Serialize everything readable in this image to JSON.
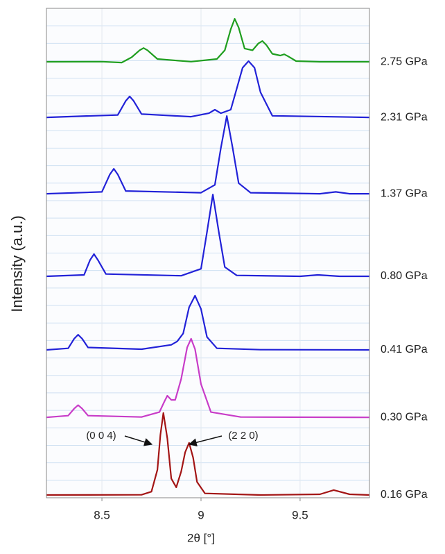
{
  "chart_data": {
    "type": "line",
    "x_label": "2θ [°]",
    "y_label": "Intensity (a.u.)",
    "xlim": [
      8.22,
      9.85
    ],
    "xticks": [
      8.5,
      9,
      9.5
    ],
    "ylim": [
      0,
      28
    ],
    "yticks": [
      0,
      1,
      2,
      3,
      4,
      5,
      6,
      7,
      8,
      9,
      10,
      11,
      12,
      13,
      14,
      15,
      16,
      17,
      18,
      19,
      20,
      21,
      22,
      23,
      24,
      25,
      26,
      27,
      28
    ],
    "ytick_labels": false,
    "grid": true,
    "annotations": [
      "(0 0 4)",
      "(2 2 0)"
    ],
    "series": [
      {
        "name": "0.16 GPa",
        "color": "#a31515",
        "x": [
          8.22,
          8.7,
          8.75,
          8.78,
          8.795,
          8.81,
          8.83,
          8.85,
          8.875,
          8.9,
          8.92,
          8.94,
          8.96,
          8.98,
          9.02,
          9.3,
          9.6,
          9.67,
          9.75,
          9.85
        ],
        "values": [
          0.16,
          0.17,
          0.35,
          1.6,
          3.6,
          4.85,
          3.4,
          1.1,
          0.6,
          1.5,
          2.6,
          3.14,
          2.3,
          0.9,
          0.25,
          0.16,
          0.2,
          0.44,
          0.2,
          0.16
        ]
      },
      {
        "name": "0.30 GPa",
        "color": "#c83cc8",
        "x": [
          8.22,
          8.33,
          8.36,
          8.38,
          8.4,
          8.43,
          8.7,
          8.79,
          8.815,
          8.83,
          8.85,
          8.87,
          8.9,
          8.93,
          8.95,
          8.97,
          9.0,
          9.05,
          9.2,
          9.85
        ],
        "values": [
          4.6,
          4.7,
          5.1,
          5.3,
          5.1,
          4.7,
          4.62,
          4.9,
          5.5,
          5.84,
          5.6,
          5.6,
          6.8,
          8.6,
          9.1,
          8.5,
          6.5,
          4.9,
          4.62,
          4.6
        ]
      },
      {
        "name": "0.41 GPa",
        "color": "#2222d8",
        "x": [
          8.22,
          8.33,
          8.36,
          8.38,
          8.4,
          8.43,
          8.7,
          8.85,
          8.88,
          8.91,
          8.94,
          8.97,
          9.0,
          9.03,
          9.08,
          9.3,
          9.85
        ],
        "values": [
          8.46,
          8.55,
          9.1,
          9.33,
          9.1,
          8.6,
          8.5,
          8.75,
          8.95,
          9.4,
          10.9,
          11.56,
          10.8,
          9.2,
          8.55,
          8.47,
          8.46
        ]
      },
      {
        "name": "0.80 GPa",
        "color": "#2222d8",
        "x": [
          8.22,
          8.41,
          8.44,
          8.46,
          8.48,
          8.52,
          8.9,
          9.0,
          9.03,
          9.06,
          9.09,
          9.12,
          9.18,
          9.5,
          9.59,
          9.7,
          9.85
        ],
        "values": [
          12.67,
          12.75,
          13.6,
          13.94,
          13.6,
          12.8,
          12.7,
          13.1,
          15.2,
          17.35,
          15.2,
          13.2,
          12.72,
          12.67,
          12.75,
          12.67,
          12.67
        ]
      },
      {
        "name": "1.37 GPa",
        "color": "#2222d8",
        "x": [
          8.22,
          8.5,
          8.54,
          8.56,
          8.58,
          8.62,
          9.0,
          9.07,
          9.1,
          9.13,
          9.16,
          9.19,
          9.25,
          9.6,
          9.68,
          9.75,
          9.85
        ],
        "values": [
          17.39,
          17.5,
          18.5,
          18.82,
          18.5,
          17.55,
          17.45,
          17.9,
          20.0,
          21.84,
          20.0,
          18.0,
          17.45,
          17.39,
          17.5,
          17.39,
          17.39
        ]
      },
      {
        "name": "2.31 GPa",
        "color": "#2222d8",
        "x": [
          8.22,
          8.58,
          8.62,
          8.64,
          8.66,
          8.7,
          8.95,
          9.04,
          9.07,
          9.1,
          9.15,
          9.18,
          9.21,
          9.24,
          9.27,
          9.3,
          9.36,
          9.85
        ],
        "values": [
          21.76,
          21.9,
          22.7,
          22.96,
          22.7,
          21.95,
          21.8,
          22.0,
          22.2,
          22.0,
          22.2,
          23.4,
          24.6,
          24.98,
          24.6,
          23.2,
          21.85,
          21.76
        ]
      },
      {
        "name": "2.75 GPa",
        "color": "#1f9e1f",
        "x": [
          8.22,
          8.5,
          8.6,
          8.65,
          8.69,
          8.71,
          8.73,
          8.78,
          8.95,
          9.08,
          9.12,
          9.15,
          9.17,
          9.19,
          9.22,
          9.26,
          9.29,
          9.31,
          9.33,
          9.36,
          9.4,
          9.42,
          9.44,
          9.48,
          9.6,
          9.85
        ],
        "values": [
          24.94,
          24.95,
          24.9,
          25.2,
          25.6,
          25.73,
          25.6,
          25.1,
          24.95,
          25.1,
          25.6,
          26.8,
          27.4,
          26.9,
          25.7,
          25.6,
          26.0,
          26.13,
          25.9,
          25.4,
          25.3,
          25.37,
          25.25,
          24.98,
          24.94,
          24.94
        ]
      }
    ]
  }
}
